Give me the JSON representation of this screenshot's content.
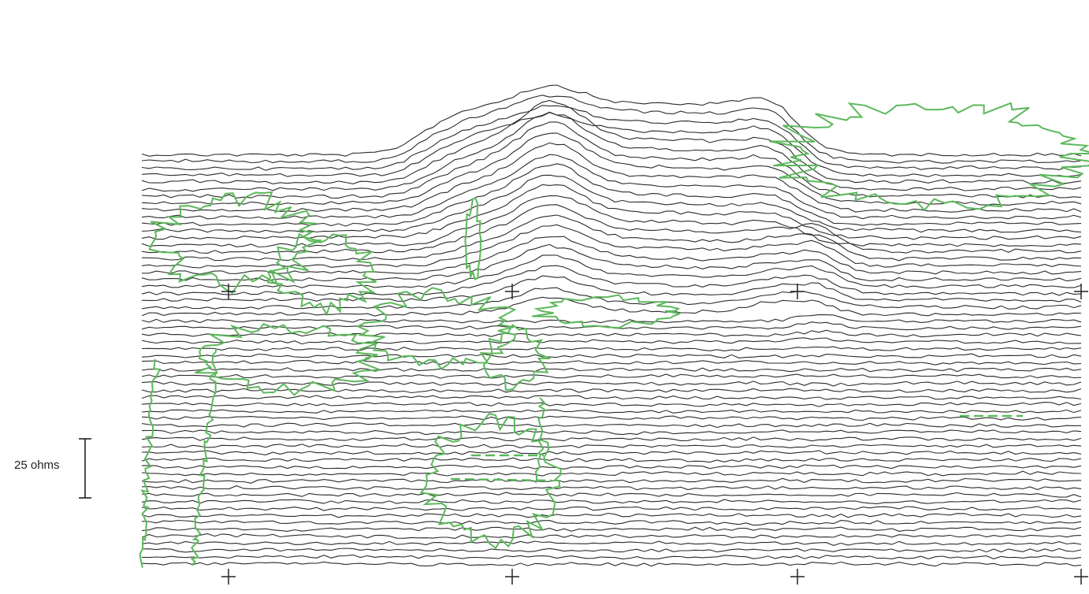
{
  "chart_data": {
    "type": "line",
    "title": "",
    "xlabel": "",
    "ylabel": "",
    "scale_bar": {
      "label": "25 ohms",
      "value": 25,
      "unit": "ohms"
    },
    "traces": {
      "count": 60,
      "samples_per_trace": 130,
      "color": "#2b2b2b",
      "description_note": ""
    },
    "tick_marks": {
      "rows": 2,
      "columns": 4
    },
    "anomaly": {
      "name": "",
      "peak_value_ohms": 75
    },
    "overlay_color": "#5cb85c"
  }
}
